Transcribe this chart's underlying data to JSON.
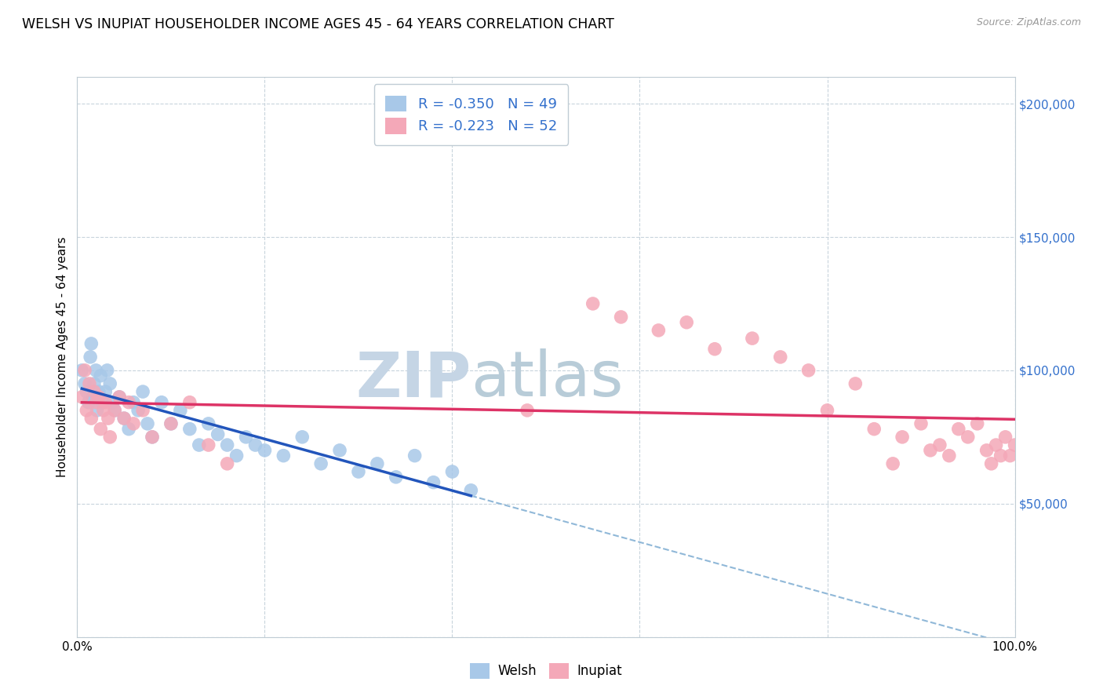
{
  "title": "WELSH VS INUPIAT HOUSEHOLDER INCOME AGES 45 - 64 YEARS CORRELATION CHART",
  "source": "Source: ZipAtlas.com",
  "ylabel": "Householder Income Ages 45 - 64 years",
  "welsh_R": -0.35,
  "welsh_N": 49,
  "inupiat_R": -0.223,
  "inupiat_N": 52,
  "welsh_color": "#a8c8e8",
  "inupiat_color": "#f4a8b8",
  "welsh_line_color": "#2255bb",
  "inupiat_line_color": "#dd3366",
  "dashed_line_color": "#90b8d8",
  "watermark_color": "#d0dce8",
  "background_color": "#ffffff",
  "grid_color": "#c8d4dc",
  "welsh_x": [
    0.5,
    0.8,
    1.0,
    1.2,
    1.4,
    1.5,
    1.7,
    1.8,
    2.0,
    2.1,
    2.3,
    2.5,
    2.7,
    3.0,
    3.2,
    3.5,
    3.8,
    4.0,
    4.5,
    5.0,
    5.5,
    6.0,
    6.5,
    7.0,
    7.5,
    8.0,
    9.0,
    10.0,
    11.0,
    12.0,
    13.0,
    14.0,
    15.0,
    16.0,
    17.0,
    18.0,
    19.0,
    20.0,
    22.0,
    24.0,
    26.0,
    28.0,
    30.0,
    32.0,
    34.0,
    36.0,
    38.0,
    40.0,
    42.0
  ],
  "welsh_y": [
    100000,
    95000,
    92000,
    88000,
    105000,
    110000,
    90000,
    95000,
    100000,
    85000,
    92000,
    98000,
    88000,
    92000,
    100000,
    95000,
    88000,
    85000,
    90000,
    82000,
    78000,
    88000,
    85000,
    92000,
    80000,
    75000,
    88000,
    80000,
    85000,
    78000,
    72000,
    80000,
    76000,
    72000,
    68000,
    75000,
    72000,
    70000,
    68000,
    75000,
    65000,
    70000,
    62000,
    65000,
    60000,
    68000,
    58000,
    62000,
    55000
  ],
  "inupiat_x": [
    0.5,
    0.8,
    1.0,
    1.3,
    1.5,
    1.8,
    2.0,
    2.3,
    2.5,
    2.8,
    3.0,
    3.3,
    3.5,
    4.0,
    4.5,
    5.0,
    5.5,
    6.0,
    7.0,
    8.0,
    10.0,
    12.0,
    14.0,
    16.0,
    48.0,
    55.0,
    58.0,
    62.0,
    65.0,
    68.0,
    72.0,
    75.0,
    78.0,
    80.0,
    83.0,
    85.0,
    87.0,
    88.0,
    90.0,
    91.0,
    92.0,
    93.0,
    94.0,
    95.0,
    96.0,
    97.0,
    97.5,
    98.0,
    98.5,
    99.0,
    99.5,
    100.0
  ],
  "inupiat_y": [
    90000,
    100000,
    85000,
    95000,
    82000,
    92000,
    88000,
    90000,
    78000,
    85000,
    88000,
    82000,
    75000,
    85000,
    90000,
    82000,
    88000,
    80000,
    85000,
    75000,
    80000,
    88000,
    72000,
    65000,
    85000,
    125000,
    120000,
    115000,
    118000,
    108000,
    112000,
    105000,
    100000,
    85000,
    95000,
    78000,
    65000,
    75000,
    80000,
    70000,
    72000,
    68000,
    78000,
    75000,
    80000,
    70000,
    65000,
    72000,
    68000,
    75000,
    68000,
    72000
  ]
}
